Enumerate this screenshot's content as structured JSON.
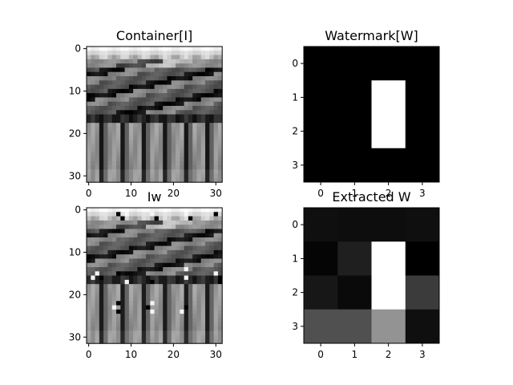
{
  "chart_data": [
    {
      "type": "heatmap",
      "title": "Container[I]",
      "colormap": "gray",
      "grid_size": [
        32,
        32
      ],
      "extent": [
        -0.5,
        31.5,
        31.5,
        -0.5
      ],
      "x_ticks": [
        0,
        10,
        20,
        30
      ],
      "y_ticks": [
        0,
        10,
        20,
        30
      ],
      "image_generator": "texture_container",
      "grid": false,
      "legend": "none"
    },
    {
      "type": "heatmap",
      "title": "Watermark[W]",
      "colormap": "gray",
      "grid_size": [
        4,
        4
      ],
      "extent": [
        -0.5,
        3.5,
        3.5,
        -0.5
      ],
      "x_ticks": [
        0,
        1,
        2,
        3
      ],
      "y_ticks": [
        0,
        1,
        2,
        3
      ],
      "values": [
        [
          0,
          0,
          0,
          0
        ],
        [
          0,
          0,
          1,
          0
        ],
        [
          0,
          0,
          1,
          0
        ],
        [
          0,
          0,
          0,
          0
        ]
      ],
      "grid": false,
      "legend": "none"
    },
    {
      "type": "heatmap",
      "title": "Iw",
      "colormap": "gray",
      "grid_size": [
        32,
        32
      ],
      "extent": [
        -0.5,
        31.5,
        31.5,
        -0.5
      ],
      "x_ticks": [
        0,
        10,
        20,
        30
      ],
      "y_ticks": [
        0,
        10,
        20,
        30
      ],
      "image_generator": "texture_watermarked",
      "grid": false,
      "legend": "none"
    },
    {
      "type": "heatmap",
      "title": "Extracted W",
      "colormap": "gray",
      "grid_size": [
        4,
        4
      ],
      "extent": [
        -0.5,
        3.5,
        3.5,
        -0.5
      ],
      "x_ticks": [
        0,
        1,
        2,
        3
      ],
      "y_ticks": [
        0,
        1,
        2,
        3
      ],
      "values": [
        [
          0.07,
          0.06,
          0.06,
          0.07
        ],
        [
          0.03,
          0.13,
          1.0,
          0.01
        ],
        [
          0.1,
          0.05,
          1.0,
          0.24
        ],
        [
          0.32,
          0.32,
          0.58,
          0.07
        ]
      ],
      "grid": false,
      "legend": "none"
    }
  ]
}
